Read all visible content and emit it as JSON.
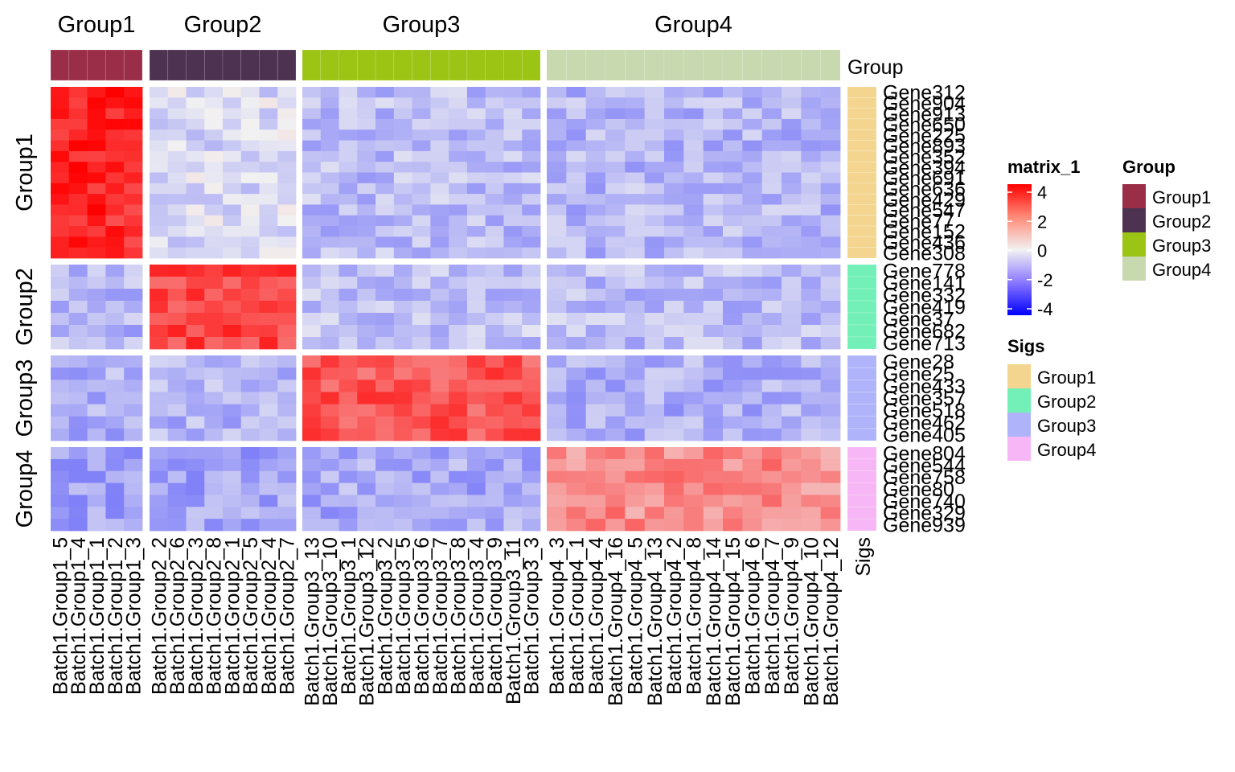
{
  "chart_data": {
    "type": "heatmap",
    "column_groups": [
      {
        "title": "Group1",
        "color": "#9A2D47",
        "samples": [
          "Batch1.Group1_5",
          "Batch1.Group1_4",
          "Batch1.Group1_1",
          "Batch1.Group1_2",
          "Batch1.Group1_3"
        ]
      },
      {
        "title": "Group2",
        "color": "#4E3252",
        "samples": [
          "Batch1.Group2_2",
          "Batch1.Group2_6",
          "Batch1.Group2_3",
          "Batch1.Group2_8",
          "Batch1.Group2_1",
          "Batch1.Group2_5",
          "Batch1.Group2_4",
          "Batch1.Group2_7"
        ]
      },
      {
        "title": "Group3",
        "color": "#9CC414",
        "samples": [
          "Batch1.Group3_13",
          "Batch1.Group3_10",
          "Batch1.Group3_1",
          "Batch1.Group3_12",
          "Batch1.Group3_2",
          "Batch1.Group3_5",
          "Batch1.Group3_6",
          "Batch1.Group3_7",
          "Batch1.Group3_8",
          "Batch1.Group3_4",
          "Batch1.Group3_9",
          "Batch1.Group3_11",
          "Batch1.Group3_3"
        ]
      },
      {
        "title": "Group4",
        "color": "#C8D8AF",
        "samples": [
          "Batch1.Group4_3",
          "Batch1.Group4_1",
          "Batch1.Group4_4",
          "Batch1.Group4_16",
          "Batch1.Group4_5",
          "Batch1.Group4_13",
          "Batch1.Group4_2",
          "Batch1.Group4_8",
          "Batch1.Group4_14",
          "Batch1.Group4_15",
          "Batch1.Group4_6",
          "Batch1.Group4_7",
          "Batch1.Group4_9",
          "Batch1.Group4_10",
          "Batch1.Group4_12"
        ]
      }
    ],
    "row_groups": [
      {
        "title": "Group1",
        "sig_color": "#F4D58F",
        "genes": [
          "Gene312",
          "Gene904",
          "Gene913",
          "Gene650",
          "Gene225",
          "Gene893",
          "Gene352",
          "Gene394",
          "Gene691",
          "Gene636",
          "Gene429",
          "Gene547",
          "Gene77",
          "Gene152",
          "Gene436",
          "Gene308"
        ]
      },
      {
        "title": "Group2",
        "sig_color": "#72F0B8",
        "genes": [
          "Gene778",
          "Gene141",
          "Gene332",
          "Gene419",
          "Gene37",
          "Gene682",
          "Gene713"
        ]
      },
      {
        "title": "Group3",
        "sig_color": "#AFB4FA",
        "genes": [
          "Gene28",
          "Gene25",
          "Gene433",
          "Gene357",
          "Gene518",
          "Gene462",
          "Gene405"
        ]
      },
      {
        "title": "Group4",
        "sig_color": "#F7B6F5",
        "genes": [
          "Gene804",
          "Gene544",
          "Gene758",
          "Gene80",
          "Gene740",
          "Gene329",
          "Gene939"
        ]
      }
    ],
    "block_means": [
      [
        3.4,
        -0.4,
        -0.9,
        -1.0
      ],
      [
        -1.0,
        2.9,
        -0.8,
        -0.9
      ],
      [
        -1.1,
        -1.0,
        2.6,
        -1.1
      ],
      [
        -1.3,
        -1.3,
        -1.2,
        1.7
      ]
    ],
    "color_scale": {
      "min": -4,
      "max": 4,
      "low": "#0000FF",
      "mid": "#F2F2F2",
      "high": "#FF0000"
    },
    "top_annotation_name": "Group",
    "right_annotation_name": "Sigs",
    "legend_value": {
      "title": "matrix_1",
      "ticks": [
        "4",
        "2",
        "0",
        "-2",
        "-4"
      ],
      "tick_values": [
        4,
        2,
        0,
        -2,
        -4
      ]
    },
    "legend_group": {
      "title": "Group",
      "items": [
        "Group1",
        "Group2",
        "Group3",
        "Group4"
      ]
    },
    "legend_sigs": {
      "title": "Sigs",
      "items": [
        "Group1",
        "Group2",
        "Group3",
        "Group4"
      ]
    }
  }
}
